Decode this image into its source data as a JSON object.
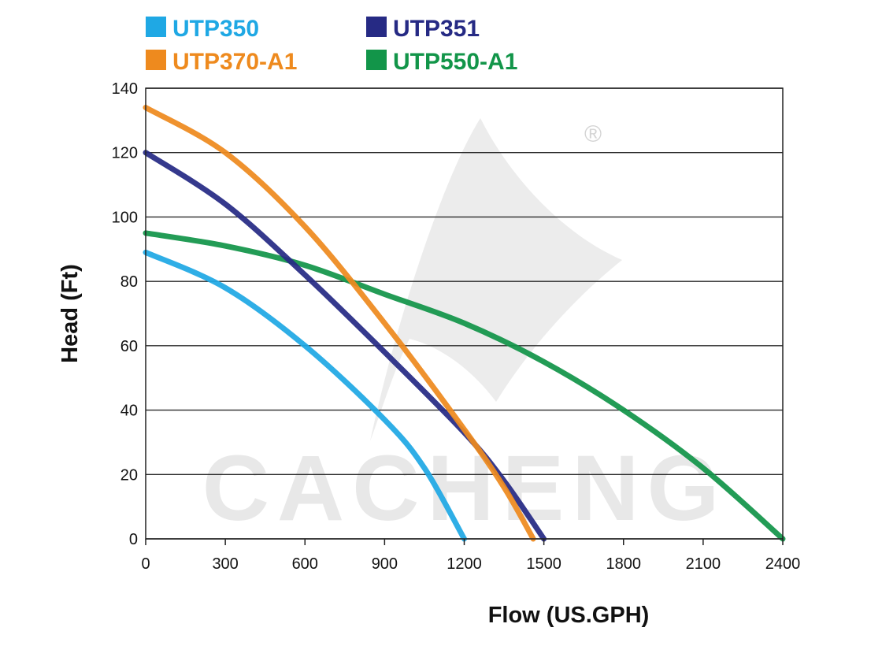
{
  "chart_data": {
    "type": "line",
    "xlabel": "Flow (US.GPH)",
    "ylabel": "Head (Ft)",
    "xlim": [
      0,
      2400
    ],
    "ylim": [
      0,
      140
    ],
    "x_ticks": [
      "0",
      "300",
      "600",
      "900",
      "1200",
      "1500",
      "1800",
      "2100",
      "2400"
    ],
    "y_ticks": [
      "0",
      "20",
      "40",
      "60",
      "80",
      "100",
      "120",
      "140"
    ],
    "grid": "horizontal",
    "legend_position": "top",
    "series": [
      {
        "name": "UTP350",
        "color": "#1fa8e4",
        "points": [
          [
            0,
            89
          ],
          [
            300,
            78
          ],
          [
            600,
            60
          ],
          [
            900,
            37
          ],
          [
            1050,
            22
          ],
          [
            1200,
            0
          ]
        ]
      },
      {
        "name": "UTP351",
        "color": "#262a84",
        "points": [
          [
            0,
            120
          ],
          [
            300,
            104
          ],
          [
            600,
            82
          ],
          [
            900,
            58
          ],
          [
            1200,
            33
          ],
          [
            1350,
            18
          ],
          [
            1500,
            0
          ]
        ]
      },
      {
        "name": "UTP370-A1",
        "color": "#ee8a1e",
        "points": [
          [
            0,
            134
          ],
          [
            300,
            120
          ],
          [
            600,
            97
          ],
          [
            900,
            67
          ],
          [
            1200,
            34
          ],
          [
            1350,
            16
          ],
          [
            1460,
            0
          ]
        ]
      },
      {
        "name": "UTP550-A1",
        "color": "#129549",
        "points": [
          [
            0,
            95
          ],
          [
            300,
            91
          ],
          [
            600,
            85
          ],
          [
            900,
            76
          ],
          [
            1200,
            67
          ],
          [
            1500,
            55
          ],
          [
            1800,
            40
          ],
          [
            2100,
            22
          ],
          [
            2400,
            0
          ]
        ]
      }
    ],
    "watermark": "CACHENG",
    "registered_mark": "®"
  }
}
